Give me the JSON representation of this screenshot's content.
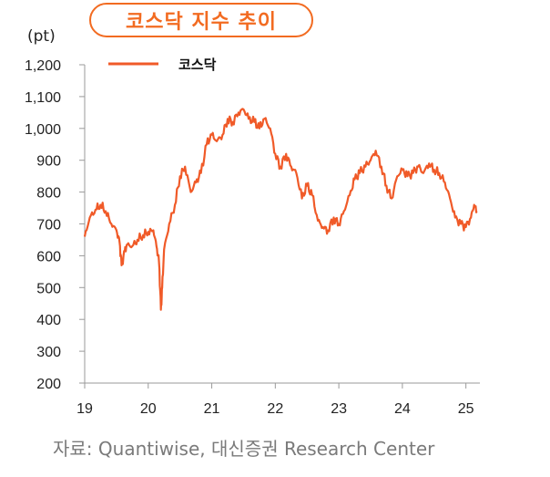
{
  "title": "코스닥 지수 추이",
  "unit": "(pt)",
  "source": "자료: Quantiwise, 대신증권 Research Center",
  "colors": {
    "accent": "#F26B21",
    "line": "#F05A28",
    "axis": "#9a9a9a"
  },
  "chart_data": {
    "type": "line",
    "ylim": [
      200,
      1200
    ],
    "y_ticks": [
      "1,200",
      "1,100",
      "1,000",
      "900",
      "800",
      "700",
      "600",
      "500",
      "400",
      "300",
      "200"
    ],
    "x_ticks": [
      "19",
      "20",
      "21",
      "22",
      "23",
      "24",
      "25"
    ],
    "grid": false,
    "legend_position": "top-left",
    "series": [
      {
        "name": "코스닥",
        "x": [
          2019.0,
          2019.08,
          2019.17,
          2019.25,
          2019.33,
          2019.42,
          2019.5,
          2019.55,
          2019.58,
          2019.63,
          2019.67,
          2019.75,
          2019.83,
          2019.92,
          2020.0,
          2020.08,
          2020.13,
          2020.17,
          2020.2,
          2020.22,
          2020.25,
          2020.33,
          2020.42,
          2020.5,
          2020.58,
          2020.67,
          2020.75,
          2020.83,
          2020.92,
          2021.0,
          2021.08,
          2021.17,
          2021.25,
          2021.33,
          2021.42,
          2021.5,
          2021.58,
          2021.67,
          2021.75,
          2021.83,
          2021.92,
          2022.0,
          2022.08,
          2022.17,
          2022.25,
          2022.33,
          2022.42,
          2022.5,
          2022.58,
          2022.67,
          2022.75,
          2022.83,
          2022.92,
          2023.0,
          2023.08,
          2023.17,
          2023.25,
          2023.33,
          2023.42,
          2023.5,
          2023.58,
          2023.67,
          2023.75,
          2023.83,
          2023.92,
          2024.0,
          2024.08,
          2024.17,
          2024.25,
          2024.33,
          2024.42,
          2024.5,
          2024.58,
          2024.67,
          2024.75,
          2024.83,
          2024.92,
          2025.0,
          2025.08,
          2025.13,
          2025.17
        ],
        "values": [
          660,
          720,
          745,
          760,
          740,
          700,
          680,
          640,
          570,
          615,
          635,
          630,
          650,
          665,
          675,
          680,
          630,
          580,
          430,
          500,
          620,
          700,
          760,
          850,
          880,
          800,
          830,
          860,
          950,
          980,
          960,
          980,
          1030,
          1020,
          1050,
          1060,
          1030,
          1020,
          1000,
          1030,
          1000,
          920,
          880,
          920,
          880,
          860,
          780,
          820,
          790,
          710,
          690,
          680,
          720,
          700,
          740,
          790,
          840,
          860,
          880,
          900,
          930,
          880,
          820,
          780,
          850,
          870,
          850,
          860,
          880,
          860,
          890,
          870,
          860,
          830,
          780,
          720,
          700,
          690,
          720,
          760,
          740
        ]
      }
    ]
  }
}
